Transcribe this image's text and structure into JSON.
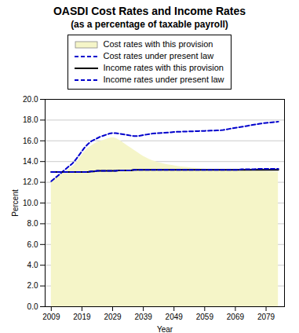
{
  "chart_data": {
    "type": "line",
    "title": "OASDI Cost Rates and Income Rates",
    "subtitle": "(as a percentage of taxable payroll)",
    "xlabel": "Year",
    "ylabel": "Percent",
    "xlim": [
      2007,
      2085
    ],
    "ylim": [
      0.0,
      20.0
    ],
    "xticks": [
      2009,
      2019,
      2029,
      2039,
      2049,
      2059,
      2069,
      2079
    ],
    "yticks": [
      {
        "value": 0.0,
        "label": "0.0"
      },
      {
        "value": 2.0,
        "label": "2.0"
      },
      {
        "value": 4.0,
        "label": "4.0"
      },
      {
        "value": 6.0,
        "label": "6.0"
      },
      {
        "value": 8.0,
        "label": "8.0"
      },
      {
        "value": 10.0,
        "label": "10.0"
      },
      {
        "value": 12.0,
        "label": "12.0"
      },
      {
        "value": 14.0,
        "label": "14.0"
      },
      {
        "value": 16.0,
        "label": "16.0"
      },
      {
        "value": 18.0,
        "label": "18.0"
      },
      {
        "value": 20.0,
        "label": "20.0"
      }
    ],
    "grid": "y",
    "legend": "top",
    "x": [
      2009,
      2010,
      2011,
      2012,
      2013,
      2014,
      2015,
      2016,
      2017,
      2018,
      2019,
      2020,
      2021,
      2022,
      2023,
      2024,
      2025,
      2026,
      2027,
      2028,
      2029,
      2030,
      2031,
      2032,
      2033,
      2034,
      2035,
      2036,
      2037,
      2038,
      2039,
      2040,
      2041,
      2042,
      2043,
      2044,
      2045,
      2046,
      2047,
      2048,
      2049,
      2050,
      2051,
      2052,
      2053,
      2054,
      2055,
      2056,
      2057,
      2058,
      2059,
      2060,
      2061,
      2062,
      2063,
      2064,
      2065,
      2066,
      2067,
      2068,
      2069,
      2070,
      2071,
      2072,
      2073,
      2074,
      2075,
      2076,
      2077,
      2078,
      2079,
      2080,
      2081,
      2082,
      2083
    ],
    "series": [
      {
        "name": "Cost rates with this provision",
        "type": "area",
        "color": "#f5f5c8",
        "values": [
          12.1,
          12.3,
          12.5,
          12.7,
          12.9,
          13.1,
          13.3,
          13.5,
          13.8,
          14.2,
          14.6,
          15.0,
          15.3,
          15.5,
          15.7,
          15.85,
          15.95,
          16.05,
          16.15,
          16.25,
          16.3,
          16.25,
          16.1,
          15.9,
          15.7,
          15.5,
          15.3,
          15.1,
          14.9,
          14.7,
          14.5,
          14.35,
          14.2,
          14.1,
          14.0,
          13.9,
          13.82,
          13.75,
          13.7,
          13.65,
          13.6,
          13.55,
          13.5,
          13.47,
          13.44,
          13.41,
          13.38,
          13.35,
          13.32,
          13.3,
          13.28,
          13.26,
          13.24,
          13.22,
          13.2,
          13.18,
          13.17,
          13.16,
          13.15,
          13.14,
          13.13,
          13.12,
          13.11,
          13.1,
          13.09,
          13.08,
          13.07,
          13.06,
          13.05,
          13.04,
          13.03,
          13.02,
          13.01,
          13.0,
          13.0
        ]
      },
      {
        "name": "Cost rates under present law",
        "type": "line",
        "color": "#0000cc",
        "line_style": "dashed",
        "values": [
          12.1,
          12.35,
          12.6,
          12.85,
          13.1,
          13.35,
          13.6,
          13.85,
          14.2,
          14.6,
          15.0,
          15.4,
          15.7,
          15.95,
          16.1,
          16.25,
          16.4,
          16.5,
          16.6,
          16.7,
          16.75,
          16.75,
          16.7,
          16.65,
          16.6,
          16.55,
          16.5,
          16.45,
          16.45,
          16.5,
          16.55,
          16.6,
          16.65,
          16.7,
          16.72,
          16.74,
          16.76,
          16.78,
          16.8,
          16.82,
          16.85,
          16.87,
          16.88,
          16.89,
          16.9,
          16.91,
          16.92,
          16.93,
          16.94,
          16.95,
          16.96,
          16.97,
          16.98,
          16.99,
          17.0,
          17.01,
          17.05,
          17.1,
          17.15,
          17.2,
          17.25,
          17.3,
          17.35,
          17.4,
          17.45,
          17.5,
          17.55,
          17.6,
          17.65,
          17.7,
          17.73,
          17.76,
          17.79,
          17.82,
          17.85
        ]
      },
      {
        "name": "Income rates with this provision",
        "type": "line",
        "color": "#000000",
        "line_style": "solid",
        "values": [
          13.0,
          13.0,
          13.0,
          13.0,
          13.0,
          13.0,
          13.0,
          13.0,
          13.0,
          13.0,
          13.0,
          13.0,
          13.0,
          13.05,
          13.05,
          13.1,
          13.1,
          13.1,
          13.1,
          13.1,
          13.1,
          13.1,
          13.15,
          13.15,
          13.15,
          13.15,
          13.15,
          13.2,
          13.2,
          13.2,
          13.2,
          13.2,
          13.2,
          13.2,
          13.2,
          13.2,
          13.2,
          13.2,
          13.2,
          13.2,
          13.2,
          13.2,
          13.2,
          13.2,
          13.2,
          13.2,
          13.2,
          13.2,
          13.2,
          13.2,
          13.2,
          13.2,
          13.2,
          13.2,
          13.2,
          13.2,
          13.2,
          13.2,
          13.2,
          13.2,
          13.2,
          13.2,
          13.2,
          13.2,
          13.2,
          13.2,
          13.2,
          13.2,
          13.2,
          13.2,
          13.2,
          13.2,
          13.2,
          13.2,
          13.2
        ]
      },
      {
        "name": "Income rates under present law",
        "type": "line",
        "color": "#0000cc",
        "line_style": "dashed",
        "values": [
          13.0,
          13.0,
          13.0,
          13.0,
          13.0,
          13.0,
          13.0,
          13.0,
          13.0,
          13.0,
          13.0,
          13.0,
          13.0,
          13.05,
          13.05,
          13.1,
          13.1,
          13.1,
          13.1,
          13.1,
          13.1,
          13.1,
          13.15,
          13.15,
          13.15,
          13.15,
          13.15,
          13.2,
          13.2,
          13.2,
          13.2,
          13.2,
          13.2,
          13.2,
          13.2,
          13.2,
          13.2,
          13.2,
          13.2,
          13.2,
          13.2,
          13.2,
          13.2,
          13.2,
          13.2,
          13.2,
          13.2,
          13.2,
          13.2,
          13.2,
          13.2,
          13.2,
          13.2,
          13.2,
          13.2,
          13.2,
          13.2,
          13.2,
          13.2,
          13.2,
          13.2,
          13.2,
          13.25,
          13.25,
          13.25,
          13.25,
          13.25,
          13.3,
          13.3,
          13.3,
          13.3,
          13.3,
          13.3,
          13.3,
          13.3
        ]
      }
    ]
  }
}
